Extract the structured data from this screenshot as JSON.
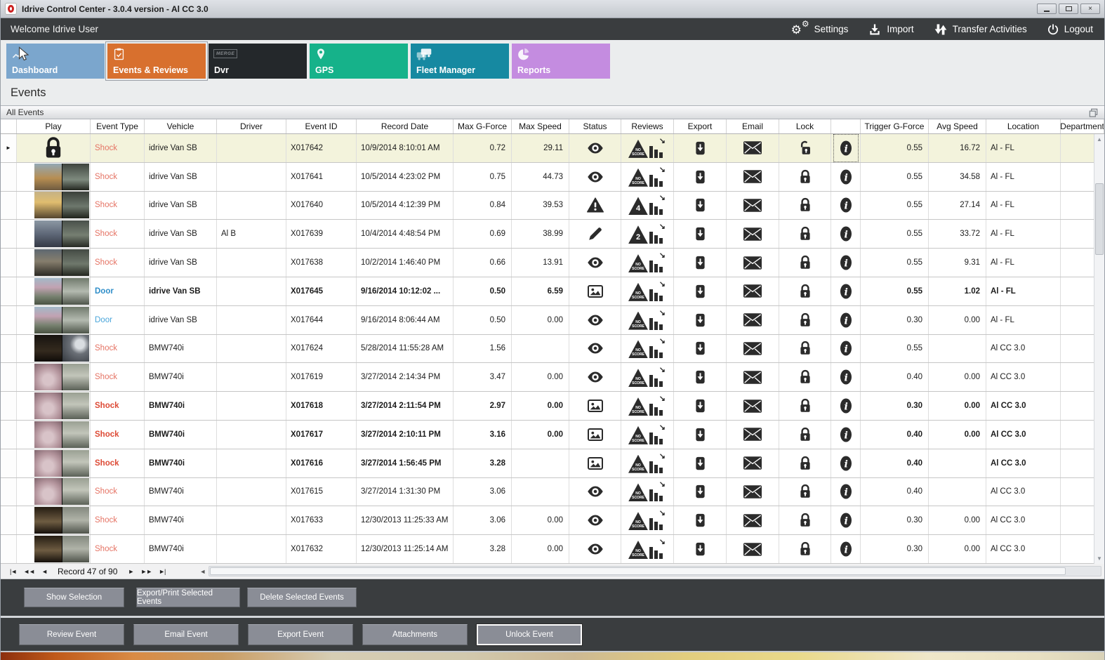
{
  "window": {
    "title": "Idrive Control Center - 3.0.4 version - Al CC 3.0",
    "controls": [
      "minimize",
      "maximize",
      "close"
    ]
  },
  "welcome_bar": {
    "greeting": "Welcome Idrive User",
    "actions": [
      {
        "label": "Settings",
        "icon": "gears-icon"
      },
      {
        "label": "Import",
        "icon": "import-icon"
      },
      {
        "label": "Transfer Activities",
        "icon": "transfer-icon"
      },
      {
        "label": "Logout",
        "icon": "power-icon"
      }
    ]
  },
  "tabs": [
    {
      "label": "Dashboard",
      "icon": "chart-cursor-icon",
      "color": "#7ba6cd",
      "selected": false
    },
    {
      "label": "Events & Reviews",
      "icon": "clipboard-check-icon",
      "color": "#d8702e",
      "selected": true
    },
    {
      "label": "Dvr",
      "icon": "merge-box-icon",
      "icon_text": "MERGE",
      "color": "#24282b",
      "selected": false
    },
    {
      "label": "GPS",
      "icon": "map-pin-icon",
      "color": "#16b28a",
      "selected": false
    },
    {
      "label": "Fleet Manager",
      "icon": "fleet-trucks-icon",
      "color": "#1689a1",
      "selected": false
    },
    {
      "label": "Reports",
      "icon": "pie-chart-icon",
      "color": "#c48ce0",
      "selected": false
    }
  ],
  "page": {
    "title": "Events"
  },
  "panel": {
    "title": "All Events"
  },
  "grid": {
    "columns": [
      "",
      "Play",
      "Event Type",
      "Vehicle",
      "Driver",
      "Event ID",
      "Record Date",
      "Max G-Force",
      "Max Speed",
      "Status",
      "Reviews",
      "Export",
      "Email",
      "Lock",
      "",
      "Trigger G-Force",
      "Avg Speed",
      "Location",
      "Department"
    ],
    "rows": [
      {
        "selected": true,
        "unread": false,
        "play": "lock",
        "thumb_variant": "",
        "event_type": "Shock",
        "event_type_kind": "shock",
        "vehicle": "idrive Van SB",
        "driver": "",
        "event_id": "X017642",
        "record_date": "10/9/2014 8:10:01 AM",
        "max_g_force": "0.72",
        "max_speed": "29.11",
        "status": "eye",
        "review_score": "NO SCORE",
        "lock": "unlocked",
        "trigger_g_force": "0.55",
        "avg_speed": "16.72",
        "location": "Al - FL",
        "department": ""
      },
      {
        "selected": false,
        "unread": false,
        "play": "thumb",
        "thumb_variant": "road-crane",
        "event_type": "Shock",
        "event_type_kind": "shock",
        "vehicle": "idrive Van SB",
        "driver": "",
        "event_id": "X017641",
        "record_date": "10/5/2014 4:23:02 PM",
        "max_g_force": "0.75",
        "max_speed": "44.73",
        "status": "eye",
        "review_score": "NO SCORE",
        "lock": "locked",
        "trigger_g_force": "0.55",
        "avg_speed": "34.58",
        "location": "Al - FL",
        "department": ""
      },
      {
        "selected": false,
        "unread": false,
        "play": "thumb",
        "thumb_variant": "road-sunrise",
        "event_type": "Shock",
        "event_type_kind": "shock",
        "vehicle": "idrive Van SB",
        "driver": "",
        "event_id": "X017640",
        "record_date": "10/5/2014 4:12:39 PM",
        "max_g_force": "0.84",
        "max_speed": "39.53",
        "status": "warning",
        "review_score": "4",
        "lock": "locked",
        "trigger_g_force": "0.55",
        "avg_speed": "27.14",
        "location": "Al - FL",
        "department": ""
      },
      {
        "selected": false,
        "unread": false,
        "play": "thumb",
        "thumb_variant": "road-dusk",
        "event_type": "Shock",
        "event_type_kind": "shock",
        "vehicle": "idrive Van SB",
        "driver": "Al B",
        "event_id": "X017639",
        "record_date": "10/4/2014 4:48:54 PM",
        "max_g_force": "0.69",
        "max_speed": "38.99",
        "status": "pencil",
        "review_score": "2",
        "lock": "locked",
        "trigger_g_force": "0.55",
        "avg_speed": "33.72",
        "location": "Al - FL",
        "department": ""
      },
      {
        "selected": false,
        "unread": false,
        "play": "thumb",
        "thumb_variant": "road-dark",
        "event_type": "Shock",
        "event_type_kind": "shock",
        "vehicle": "idrive Van SB",
        "driver": "",
        "event_id": "X017638",
        "record_date": "10/2/2014 1:46:40 PM",
        "max_g_force": "0.66",
        "max_speed": "13.91",
        "status": "eye",
        "review_score": "NO SCORE",
        "lock": "locked",
        "trigger_g_force": "0.55",
        "avg_speed": "9.31",
        "location": "Al - FL",
        "department": ""
      },
      {
        "selected": false,
        "unread": true,
        "play": "thumb",
        "thumb_variant": "door-tree",
        "event_type": "Door",
        "event_type_kind": "door",
        "vehicle": "idrive Van SB",
        "driver": "",
        "event_id": "X017645",
        "record_date": "9/16/2014 10:12:02 ...",
        "max_g_force": "0.50",
        "max_speed": "6.59",
        "status": "image",
        "review_score": "NO SCORE",
        "lock": "locked",
        "trigger_g_force": "0.55",
        "avg_speed": "1.02",
        "location": "Al - FL",
        "department": ""
      },
      {
        "selected": false,
        "unread": false,
        "play": "thumb",
        "thumb_variant": "door-tree",
        "event_type": "Door",
        "event_type_kind": "door",
        "vehicle": "idrive Van SB",
        "driver": "",
        "event_id": "X017644",
        "record_date": "9/16/2014 8:06:44 AM",
        "max_g_force": "0.50",
        "max_speed": "0.00",
        "status": "eye",
        "review_score": "NO SCORE",
        "lock": "locked",
        "trigger_g_force": "0.30",
        "avg_speed": "0.00",
        "location": "Al - FL",
        "department": ""
      },
      {
        "selected": false,
        "unread": false,
        "play": "thumb",
        "thumb_variant": "cabin-dark",
        "event_type": "Shock",
        "event_type_kind": "shock",
        "vehicle": "BMW740i",
        "driver": "",
        "event_id": "X017624",
        "record_date": "5/28/2014 11:55:28 AM",
        "max_g_force": "1.56",
        "max_speed": "",
        "status": "eye",
        "review_score": "NO SCORE",
        "lock": "locked",
        "trigger_g_force": "0.55",
        "avg_speed": "",
        "location": "Al CC 3.0",
        "department": ""
      },
      {
        "selected": false,
        "unread": false,
        "play": "thumb",
        "thumb_variant": "room-pink",
        "event_type": "Shock",
        "event_type_kind": "shock",
        "vehicle": "BMW740i",
        "driver": "",
        "event_id": "X017619",
        "record_date": "3/27/2014 2:14:34 PM",
        "max_g_force": "3.47",
        "max_speed": "0.00",
        "status": "eye",
        "review_score": "NO SCORE",
        "lock": "locked",
        "trigger_g_force": "0.40",
        "avg_speed": "0.00",
        "location": "Al CC 3.0",
        "department": ""
      },
      {
        "selected": false,
        "unread": true,
        "play": "thumb",
        "thumb_variant": "room-pink",
        "event_type": "Shock",
        "event_type_kind": "shock",
        "vehicle": "BMW740i",
        "driver": "",
        "event_id": "X017618",
        "record_date": "3/27/2014 2:11:54 PM",
        "max_g_force": "2.97",
        "max_speed": "0.00",
        "status": "image",
        "review_score": "NO SCORE",
        "lock": "locked",
        "trigger_g_force": "0.30",
        "avg_speed": "0.00",
        "location": "Al CC 3.0",
        "department": ""
      },
      {
        "selected": false,
        "unread": true,
        "play": "thumb",
        "thumb_variant": "room-pink",
        "event_type": "Shock",
        "event_type_kind": "shock",
        "vehicle": "BMW740i",
        "driver": "",
        "event_id": "X017617",
        "record_date": "3/27/2014 2:10:11 PM",
        "max_g_force": "3.16",
        "max_speed": "0.00",
        "status": "image",
        "review_score": "NO SCORE",
        "lock": "locked",
        "trigger_g_force": "0.40",
        "avg_speed": "0.00",
        "location": "Al CC 3.0",
        "department": ""
      },
      {
        "selected": false,
        "unread": true,
        "play": "thumb",
        "thumb_variant": "room-pink",
        "event_type": "Shock",
        "event_type_kind": "shock",
        "vehicle": "BMW740i",
        "driver": "",
        "event_id": "X017616",
        "record_date": "3/27/2014 1:56:45 PM",
        "max_g_force": "3.28",
        "max_speed": "",
        "status": "image",
        "review_score": "NO SCORE",
        "lock": "locked",
        "trigger_g_force": "0.40",
        "avg_speed": "",
        "location": "Al CC 3.0",
        "department": ""
      },
      {
        "selected": false,
        "unread": false,
        "play": "thumb",
        "thumb_variant": "room-pink",
        "event_type": "Shock",
        "event_type_kind": "shock",
        "vehicle": "BMW740i",
        "driver": "",
        "event_id": "X017615",
        "record_date": "3/27/2014 1:31:30 PM",
        "max_g_force": "3.06",
        "max_speed": "",
        "status": "eye",
        "review_score": "NO SCORE",
        "lock": "locked",
        "trigger_g_force": "0.40",
        "avg_speed": "",
        "location": "Al CC 3.0",
        "department": ""
      },
      {
        "selected": false,
        "unread": false,
        "play": "thumb",
        "thumb_variant": "room-brown",
        "event_type": "Shock",
        "event_type_kind": "shock",
        "vehicle": "BMW740i",
        "driver": "",
        "event_id": "X017633",
        "record_date": "12/30/2013 11:25:33 AM",
        "max_g_force": "3.06",
        "max_speed": "0.00",
        "status": "eye",
        "review_score": "NO SCORE",
        "lock": "locked",
        "trigger_g_force": "0.30",
        "avg_speed": "0.00",
        "location": "Al CC 3.0",
        "department": ""
      },
      {
        "selected": false,
        "unread": false,
        "play": "thumb",
        "thumb_variant": "room-brown",
        "event_type": "Shock",
        "event_type_kind": "shock",
        "vehicle": "BMW740i",
        "driver": "",
        "event_id": "X017632",
        "record_date": "12/30/2013 11:25:14 AM",
        "max_g_force": "3.28",
        "max_speed": "0.00",
        "status": "eye",
        "review_score": "NO SCORE",
        "lock": "locked",
        "trigger_g_force": "0.30",
        "avg_speed": "0.00",
        "location": "Al CC 3.0",
        "department": ""
      }
    ]
  },
  "pagination": {
    "first_glyph": "|◄",
    "prev_page_glyph": "◄◄",
    "prev_glyph": "◄",
    "record_text": "Record 47 of 90",
    "next_glyph": "►",
    "next_page_glyph": "►►",
    "last_glyph": "►|"
  },
  "toolbars": {
    "selection": {
      "buttons": [
        "Show Selection",
        "Export/Print Selected Events",
        "Delete Selected  Events"
      ]
    },
    "event": {
      "buttons": [
        "Review Event",
        "Email Event",
        "Export Event",
        "Attachments",
        "Unlock Event"
      ],
      "focused_button": "Unlock Event"
    }
  },
  "colors": {
    "accent_orange": "#d8702e",
    "selected_row_bg": "#f3f3dc",
    "shock_text": "#e57364",
    "door_text": "#49a5da",
    "dark_bar": "#3a3d3f"
  }
}
